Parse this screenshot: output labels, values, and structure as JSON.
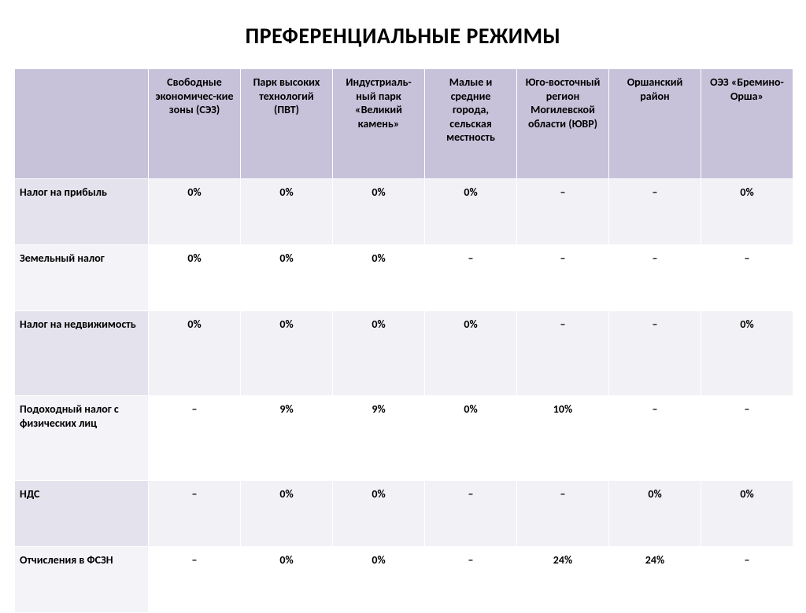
{
  "title": "ПРЕФЕРЕНЦИАЛЬНЫЕ РЕЖИМЫ",
  "table": {
    "type": "table",
    "background_color": "#ffffff",
    "border_color": "#ffffff",
    "header_bg": "#c7c2da",
    "band_a_label_bg": "#e4e2ec",
    "band_a_cell_bg": "#f2f1f6",
    "band_b_label_bg": "#f4f3f8",
    "band_b_cell_bg": "#ffffff",
    "font_size_pt": 11,
    "header_font_weight": 700,
    "cell_font_weight": 700,
    "columns": [
      "Свободные экономичес-кие зоны (СЭЗ)",
      "Парк высоких технологий (ПВТ)",
      "Индустриаль-ный парк «Великий камень»",
      "Малые и средние города, сельская местность",
      "Юго-восточный регион Могилевской области (ЮВР)",
      "Оршанский район",
      "ОЭЗ «Бремино-Орша»"
    ],
    "rows": [
      {
        "label": "Налог  на прибыль",
        "cells": [
          "0%",
          "0%",
          "0%",
          "0%",
          "–",
          "–",
          "0%"
        ]
      },
      {
        "label": "Земельный налог",
        "cells": [
          "0%",
          "0%",
          "0%",
          "–",
          "–",
          "–",
          "–"
        ]
      },
      {
        "label": "Налог на недвижимость",
        "cells": [
          "0%",
          "0%",
          "0%",
          "0%",
          "–",
          "–",
          "0%"
        ]
      },
      {
        "label": "Подоходный налог с физических лиц",
        "cells": [
          "–",
          "9%",
          "9%",
          "0%",
          "10%",
          "–",
          "–"
        ]
      },
      {
        "label": "НДС",
        "cells": [
          "–",
          "0%",
          "0%",
          "–",
          "–",
          "0%",
          "0%"
        ]
      },
      {
        "label": "Отчисления в ФСЗН",
        "cells": [
          "–",
          "0%",
          "0%",
          "–",
          "24%",
          "24%",
          "–"
        ]
      }
    ],
    "row_bands": [
      "a",
      "b",
      "a",
      "b",
      "a",
      "b"
    ],
    "tall_rows": [
      2,
      3
    ]
  }
}
